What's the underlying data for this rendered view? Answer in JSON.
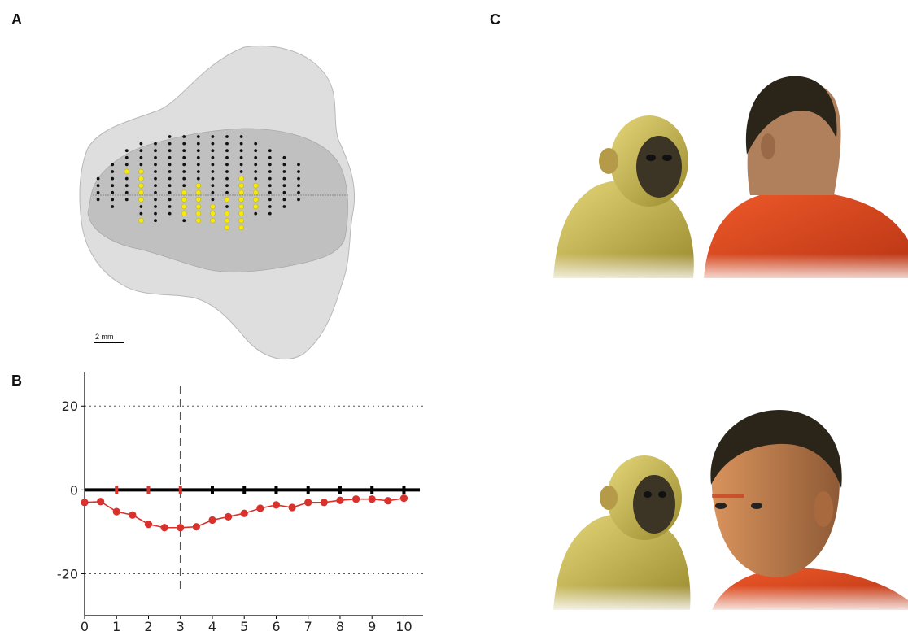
{
  "figure": {
    "labels": {
      "a": "A",
      "b": "B",
      "c": "C"
    },
    "panel_a": {
      "scale_bar_label": "2 mm",
      "electrode_grid": {
        "columns": [
          {
            "col": 1,
            "black": [
              6,
              7,
              8,
              9
            ],
            "yellow": []
          },
          {
            "col": 2,
            "black": [
              4,
              5,
              6,
              7,
              8,
              9,
              10
            ],
            "yellow": []
          },
          {
            "col": 3,
            "black": [
              2,
              3,
              4,
              5,
              6,
              7,
              8,
              9
            ],
            "yellow": [
              5
            ]
          },
          {
            "col": 4,
            "black": [
              1,
              2,
              3,
              4,
              5,
              6,
              7,
              8,
              9,
              10,
              11
            ],
            "yellow": [
              5,
              6,
              7,
              8,
              9,
              12
            ]
          },
          {
            "col": 5,
            "black": [
              1,
              2,
              3,
              4,
              5,
              6,
              7,
              8,
              9,
              10,
              11,
              12
            ],
            "yellow": []
          },
          {
            "col": 6,
            "black": [
              0,
              1,
              2,
              3,
              4,
              5,
              6,
              7,
              8,
              9,
              10,
              11
            ],
            "yellow": []
          },
          {
            "col": 7,
            "black": [
              0,
              1,
              2,
              3,
              4,
              5,
              6,
              7,
              8,
              9,
              10,
              11,
              12
            ],
            "yellow": [
              8,
              9,
              10,
              11
            ]
          },
          {
            "col": 8,
            "black": [
              0,
              1,
              2,
              3,
              4,
              5,
              6,
              7,
              8,
              9
            ],
            "yellow": [
              7,
              8,
              9,
              10,
              11,
              12
            ]
          },
          {
            "col": 9,
            "black": [
              0,
              1,
              2,
              3,
              4,
              5,
              6,
              7,
              8,
              9,
              10
            ],
            "yellow": [
              10,
              11,
              12
            ]
          },
          {
            "col": 10,
            "black": [
              0,
              1,
              2,
              3,
              4,
              5,
              6,
              7,
              8,
              9,
              10,
              11
            ],
            "yellow": [
              9,
              11,
              12,
              13
            ]
          },
          {
            "col": 11,
            "black": [
              0,
              1,
              2,
              3,
              4,
              5,
              6,
              7,
              8,
              9,
              10,
              11
            ],
            "yellow": [
              6,
              7,
              8,
              9,
              10,
              11,
              12,
              13
            ]
          },
          {
            "col": 12,
            "black": [
              1,
              2,
              3,
              4,
              5,
              6,
              7,
              8,
              9,
              10,
              11
            ],
            "yellow": [
              7,
              8,
              9,
              10
            ]
          },
          {
            "col": 13,
            "black": [
              2,
              3,
              4,
              5,
              6,
              7,
              8,
              9,
              10,
              11
            ],
            "yellow": []
          },
          {
            "col": 14,
            "black": [
              3,
              4,
              5,
              6,
              7,
              8,
              9,
              10
            ],
            "yellow": []
          },
          {
            "col": 15,
            "black": [
              4,
              5,
              6,
              7,
              8,
              9
            ],
            "yellow": []
          }
        ]
      }
    },
    "panel_c": {
      "top_image": "monkey gazing at back of human head",
      "bottom_image": "monkey gazing at human face"
    }
  },
  "chart_data": {
    "type": "line",
    "title": "",
    "xlabel": "",
    "ylabel": "",
    "xlim": [
      0,
      10.6
    ],
    "ylim": [
      -30,
      28
    ],
    "x_ticks": [
      "0",
      "1",
      "2",
      "3",
      "4",
      "5",
      "6",
      "7",
      "8",
      "9",
      "10"
    ],
    "y_ticks": [
      "20",
      "0",
      "-20"
    ],
    "y_tick_values": [
      20,
      0,
      -20
    ],
    "grid": "dotted horizontal at 20 and -20",
    "vertical_dashed_line_x": 3,
    "baseline": {
      "y": 0,
      "markers_x": [
        1,
        2,
        3,
        4,
        5,
        6,
        7,
        8,
        9,
        10
      ],
      "red_markers_x": [
        1,
        2,
        3
      ]
    },
    "series": [
      {
        "color": "#d9312b",
        "x": [
          0,
          0.5,
          1,
          1.5,
          2,
          2.5,
          3,
          3.5,
          4,
          4.5,
          5,
          5.5,
          6,
          6.5,
          7,
          7.5,
          8,
          8.5,
          9,
          9.5,
          10
        ],
        "y": [
          -3,
          -2.8,
          -5.2,
          -6,
          -8.2,
          -9,
          -9,
          -8.8,
          -7.2,
          -6.4,
          -5.6,
          -4.4,
          -3.6,
          -4.2,
          -3,
          -3,
          -2.5,
          -2.2,
          -2.2,
          -2.6,
          -2
        ]
      }
    ]
  }
}
